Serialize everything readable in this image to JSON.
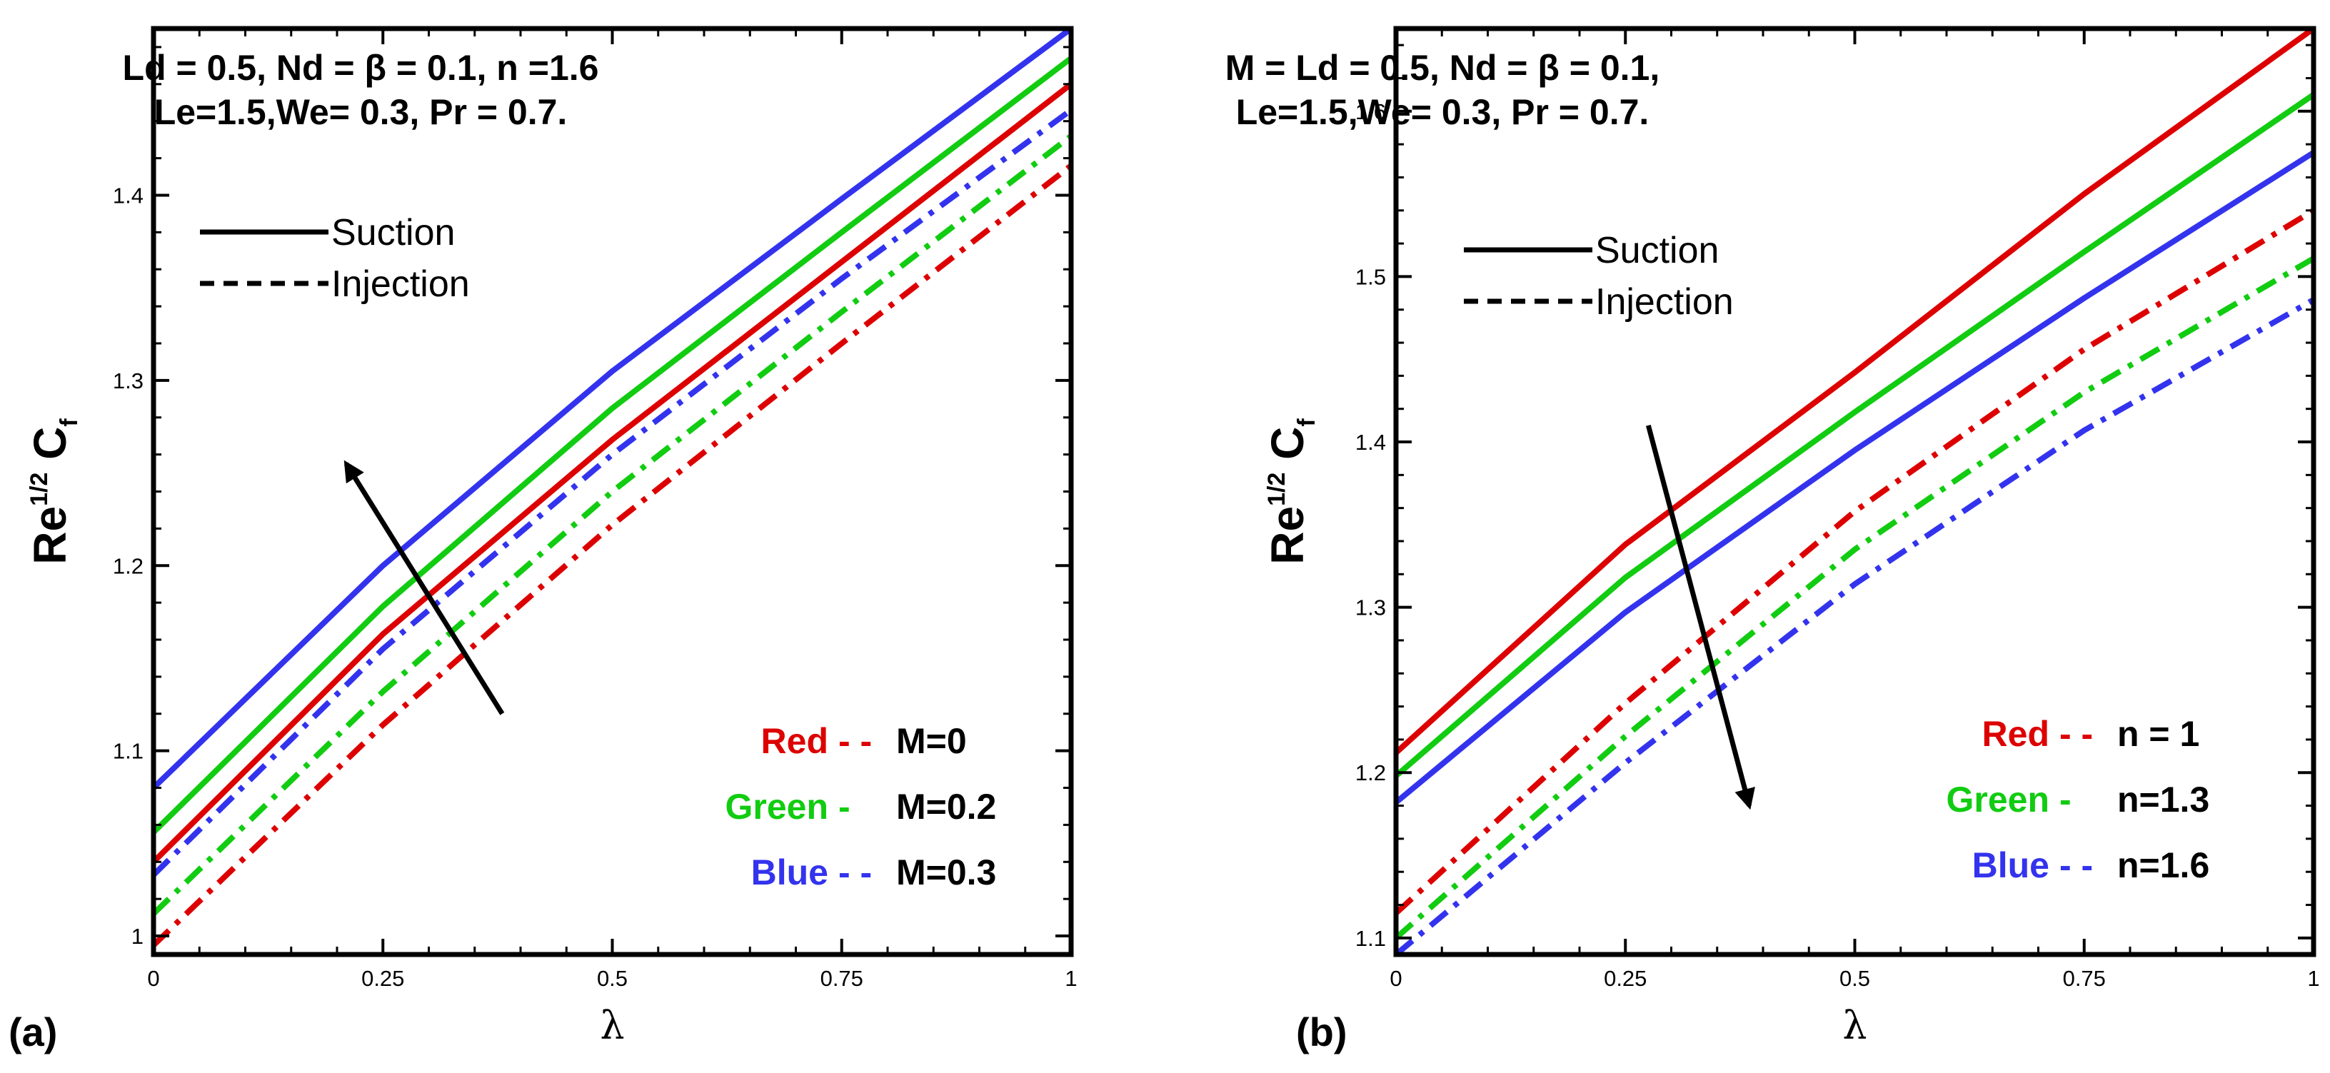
{
  "chart_data": [
    {
      "type": "line",
      "panel_label": "(a)",
      "xlabel": "λ",
      "ylabel": {
        "base": "Re",
        "sup": "1/2",
        "main": " C",
        "sub": "f"
      },
      "xlim": [
        0,
        1
      ],
      "ylim": [
        0.99,
        1.49
      ],
      "xticks": [
        0,
        0.25,
        0.5,
        0.75,
        1
      ],
      "xtick_labels": [
        "0",
        "0.25",
        "0.5",
        "0.75",
        "1"
      ],
      "yticks": [
        1.0,
        1.1,
        1.2,
        1.3,
        1.4
      ],
      "ytick_labels": [
        "1",
        "1.1",
        "1.2",
        "1.3",
        "1.4"
      ],
      "parameters": [
        "Ld = 0.5, Nd = β = 0.1, n =1.6",
        "Le=1.5,We= 0.3, Pr = 0.7."
      ],
      "line_style_legend": [
        {
          "label": "Suction",
          "style": "solid"
        },
        {
          "label": "Injection",
          "style": "dashed"
        }
      ],
      "color_legend": [
        {
          "color_name": "Red",
          "sep": "- -",
          "value": "M=0",
          "color": "#dd0000"
        },
        {
          "color_name": "Green",
          "sep": "-",
          "value": "M=0.2",
          "color": "#11cc11"
        },
        {
          "color_name": "Blue",
          "sep": "- -",
          "value": "M=0.3",
          "color": "#3333ee"
        }
      ],
      "arrow": {
        "from": [
          0.38,
          1.12
        ],
        "to": [
          0.21,
          1.255
        ]
      },
      "series": [
        {
          "color": "#3333ee",
          "style": "solid",
          "x": [
            0,
            0.25,
            0.5,
            0.75,
            1
          ],
          "y": [
            1.08,
            1.2,
            1.305,
            1.398,
            1.49
          ]
        },
        {
          "color": "#11cc11",
          "style": "solid",
          "x": [
            0,
            0.25,
            0.5,
            0.75,
            1
          ],
          "y": [
            1.056,
            1.178,
            1.285,
            1.38,
            1.474
          ]
        },
        {
          "color": "#dd0000",
          "style": "solid",
          "x": [
            0,
            0.25,
            0.5,
            0.75,
            1
          ],
          "y": [
            1.04,
            1.163,
            1.268,
            1.364,
            1.46
          ]
        },
        {
          "color": "#3333ee",
          "style": "dashdot",
          "x": [
            0,
            0.25,
            0.5,
            0.75,
            1
          ],
          "y": [
            1.033,
            1.155,
            1.26,
            1.355,
            1.446
          ]
        },
        {
          "color": "#11cc11",
          "style": "dashdot",
          "x": [
            0,
            0.25,
            0.5,
            0.75,
            1
          ],
          "y": [
            1.012,
            1.132,
            1.24,
            1.337,
            1.432
          ]
        },
        {
          "color": "#dd0000",
          "style": "dashdot",
          "x": [
            0,
            0.25,
            0.5,
            0.75,
            1
          ],
          "y": [
            0.995,
            1.114,
            1.222,
            1.32,
            1.416
          ]
        }
      ]
    },
    {
      "type": "line",
      "panel_label": "(b)",
      "xlabel": "λ",
      "ylabel": {
        "base": "Re",
        "sup": "1/2",
        "main": " C",
        "sub": "f"
      },
      "xlim": [
        0,
        1
      ],
      "ylim": [
        1.09,
        1.65
      ],
      "xticks": [
        0,
        0.25,
        0.5,
        0.75,
        1
      ],
      "xtick_labels": [
        "0",
        "0.25",
        "0.5",
        "0.75",
        "1"
      ],
      "yticks": [
        1.1,
        1.2,
        1.3,
        1.4,
        1.5,
        1.6
      ],
      "ytick_labels": [
        "1.1",
        "1.2",
        "1.3",
        "1.4",
        "1.5",
        "1.6"
      ],
      "parameters": [
        "M = Ld = 0.5, Nd = β = 0.1,",
        "Le=1.5,We= 0.3, Pr = 0.7."
      ],
      "line_style_legend": [
        {
          "label": "Suction",
          "style": "solid"
        },
        {
          "label": "Injection",
          "style": "dashed"
        }
      ],
      "color_legend": [
        {
          "color_name": "Red",
          "sep": "- -",
          "value": "n = 1",
          "color": "#dd0000"
        },
        {
          "color_name": "Green",
          "sep": "-",
          "value": "n=1.3",
          "color": "#11cc11"
        },
        {
          "color_name": "Blue",
          "sep": "- -",
          "value": "n=1.6",
          "color": "#3333ee"
        }
      ],
      "arrow": {
        "from": [
          0.275,
          1.41
        ],
        "to": [
          0.385,
          1.18
        ]
      },
      "series": [
        {
          "color": "#dd0000",
          "style": "solid",
          "x": [
            0,
            0.25,
            0.5,
            0.75,
            1
          ],
          "y": [
            1.212,
            1.338,
            1.442,
            1.55,
            1.65
          ]
        },
        {
          "color": "#11cc11",
          "style": "solid",
          "x": [
            0,
            0.25,
            0.5,
            0.75,
            1
          ],
          "y": [
            1.198,
            1.318,
            1.418,
            1.515,
            1.61
          ]
        },
        {
          "color": "#3333ee",
          "style": "solid",
          "x": [
            0,
            0.25,
            0.5,
            0.75,
            1
          ],
          "y": [
            1.182,
            1.297,
            1.395,
            1.487,
            1.575
          ]
        },
        {
          "color": "#dd0000",
          "style": "dashdot",
          "x": [
            0,
            0.25,
            0.5,
            0.75,
            1
          ],
          "y": [
            1.115,
            1.242,
            1.358,
            1.456,
            1.54
          ]
        },
        {
          "color": "#11cc11",
          "style": "dashdot",
          "x": [
            0,
            0.25,
            0.5,
            0.75,
            1
          ],
          "y": [
            1.1,
            1.222,
            1.335,
            1.43,
            1.511
          ]
        },
        {
          "color": "#3333ee",
          "style": "dashdot",
          "x": [
            0,
            0.25,
            0.5,
            0.75,
            1
          ],
          "y": [
            1.09,
            1.206,
            1.314,
            1.407,
            1.486
          ]
        }
      ]
    }
  ]
}
